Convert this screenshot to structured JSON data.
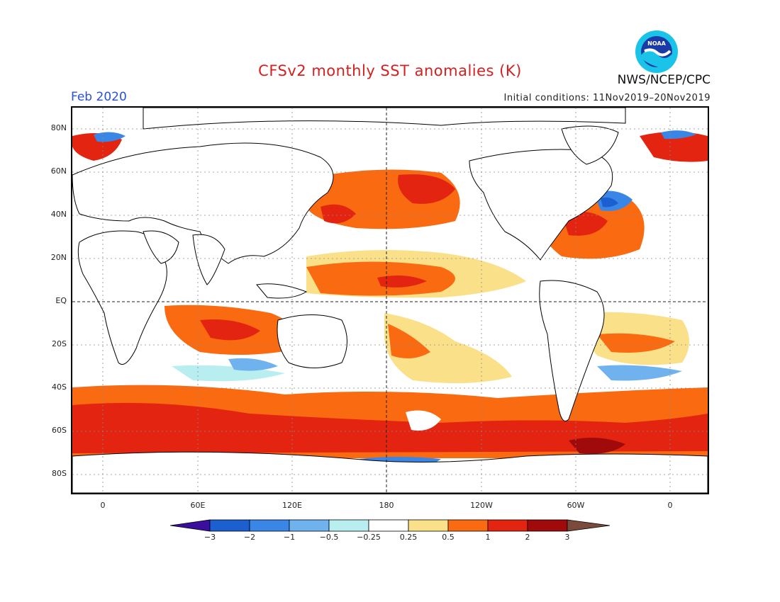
{
  "title": "CFSv2 monthly SST anomalies (K)",
  "month": "Feb 2020",
  "initial_conditions": "Initial conditions: 11Nov2019–20Nov2019",
  "organization": "NWS/NCEP/CPC",
  "logo_text": "NOAA",
  "lat_labels": [
    "80N",
    "60N",
    "40N",
    "20N",
    "EQ",
    "20S",
    "40S",
    "60S",
    "80S"
  ],
  "lon_labels": [
    "0",
    "60E",
    "120E",
    "180",
    "120W",
    "60W",
    "0"
  ],
  "colorbar": {
    "labels": [
      "−3",
      "−2",
      "−1",
      "−0.5",
      "−0.25",
      "0.25",
      "0.5",
      "1",
      "2",
      "3"
    ],
    "colors": [
      "#3a0fa0",
      "#1c5fd0",
      "#3a86e6",
      "#6fb2ee",
      "#b8eef0",
      "#ffffff",
      "#fbe08a",
      "#fa6a10",
      "#e32410",
      "#a00a0a",
      "#7a4a3a"
    ]
  },
  "colors": {
    "title": "#d62020",
    "month": "#2850d8",
    "land": "#ffffff",
    "coastline": "#000000"
  }
}
